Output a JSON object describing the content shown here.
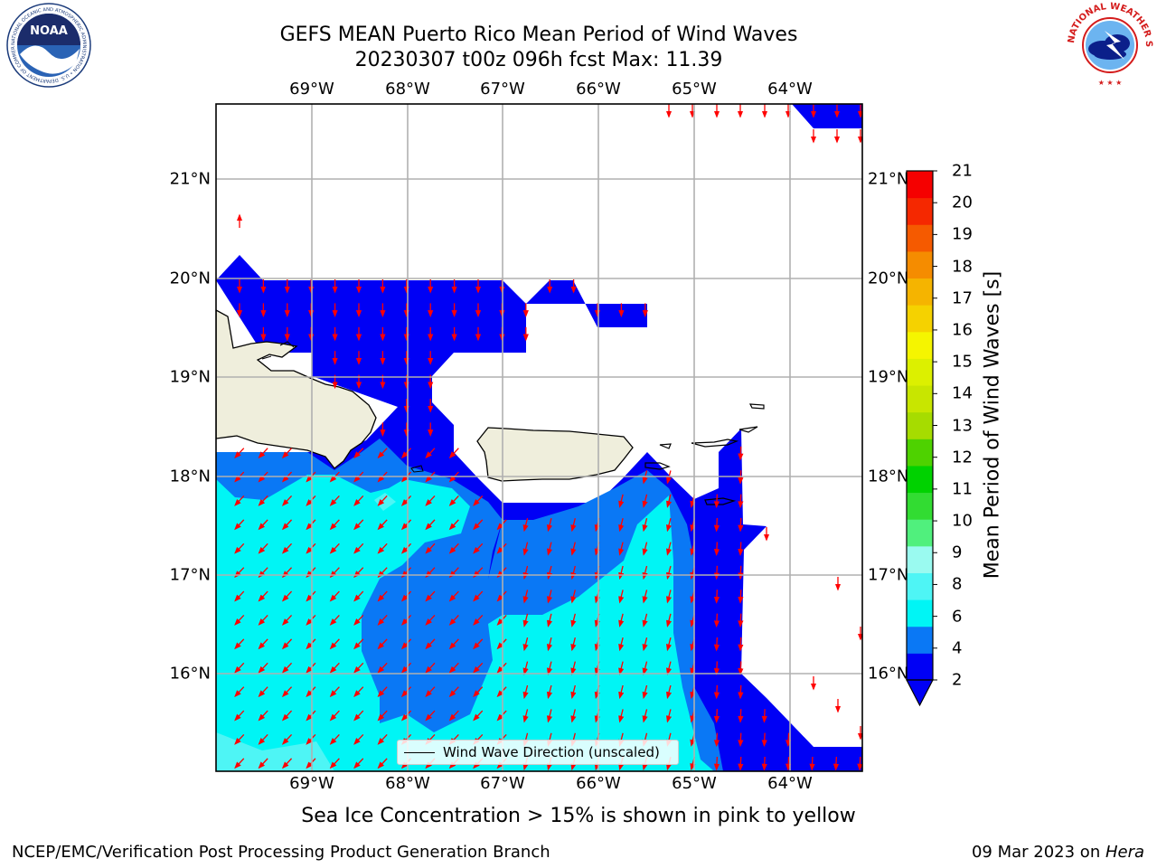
{
  "title": {
    "line1": "GEFS MEAN Puerto Rico Mean Period of Wind Waves",
    "line2": "20230307 t00z 096h fcst   Max: 11.39"
  },
  "logos": {
    "left": "NOAA",
    "left_ring": "NATIONAL OCEANIC AND ATMOSPHERIC ADMINISTRATION • U.S. DEPARTMENT OF COMMERCE",
    "right_ring": "NATIONAL WEATHER SERVICE"
  },
  "map": {
    "lon_ticks": [
      "69°W",
      "68°W",
      "67°W",
      "66°W",
      "65°W",
      "64°W"
    ],
    "lat_ticks": [
      "21°N",
      "20°N",
      "19°N",
      "18°N",
      "17°N",
      "16°N"
    ],
    "extent": {
      "lon_min": -69.99,
      "lon_max": -63.25,
      "lat_min": 15.01,
      "lat_max": 21.75
    },
    "land_color": "#efeedc",
    "arrow_color": "#ff0000",
    "grid": true
  },
  "legend": {
    "label": "Wind Wave Direction (unscaled)"
  },
  "colorbar": {
    "title": "Mean Period of Wind Waves [s]",
    "labels": [
      "2",
      "4",
      "6",
      "8",
      "9",
      "10",
      "11",
      "12",
      "13",
      "14",
      "15",
      "16",
      "17",
      "18",
      "19",
      "20",
      "21"
    ],
    "colors": [
      "#0000f5",
      "#0a78f5",
      "#00f5f5",
      "#4ef5f5",
      "#9afaf0",
      "#50f07d",
      "#32dc32",
      "#00d200",
      "#4ed200",
      "#a6dc00",
      "#c8e600",
      "#dcf000",
      "#f5f500",
      "#f5d200",
      "#f5b400",
      "#f58c00",
      "#f55a00",
      "#f52800",
      "#f50000"
    ],
    "under_color": "#0000f5"
  },
  "caption": "Sea Ice Concentration > 15% is shown in pink to yellow",
  "footer": {
    "left": "NCEP/EMC/Verification Post Processing Product Generation Branch",
    "right_prefix": "09 Mar 2023 on ",
    "right_italic": "Hera"
  }
}
